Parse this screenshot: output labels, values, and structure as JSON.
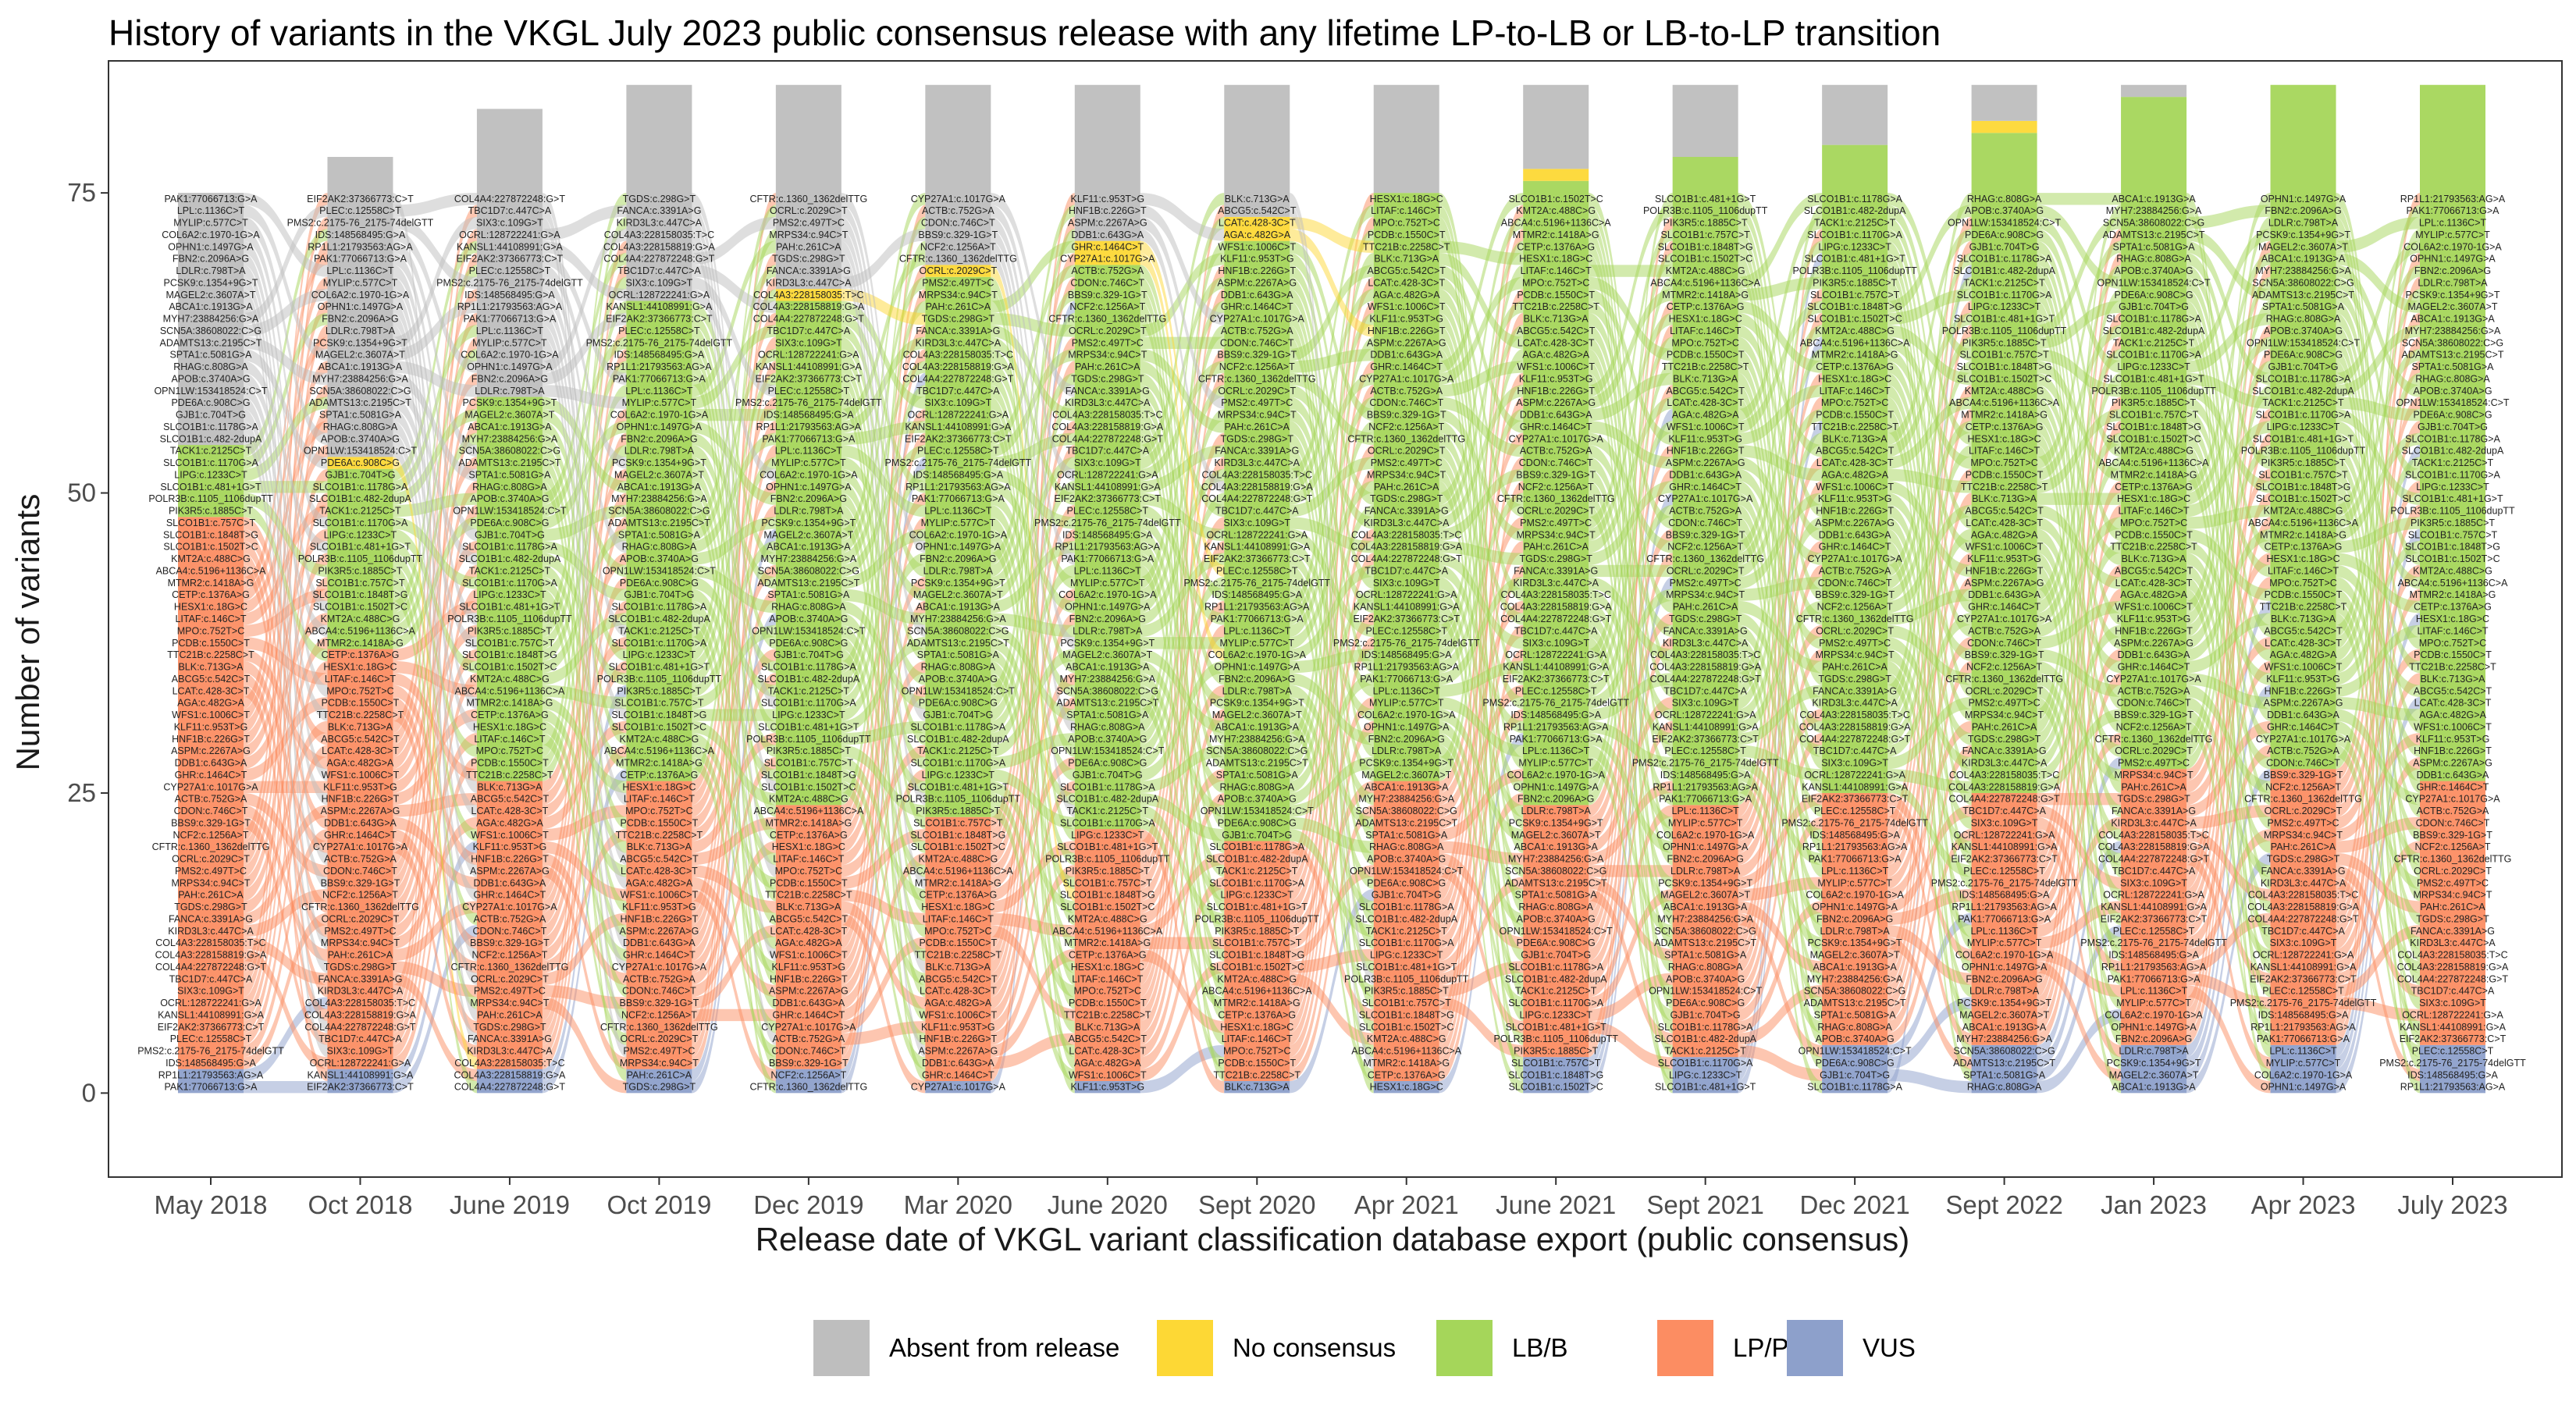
{
  "chart_data": {
    "type": "area",
    "subtype": "alluvial",
    "title": "History of variants in the VKGL July 2023 public consensus release with any lifetime LP-to-LB or LB-to-LP transition",
    "xlabel": "Release date of VKGL variant classification database export (public consensus)",
    "ylabel": "Number of variants",
    "ylim": [
      -7,
      86
    ],
    "yticks": [
      0,
      25,
      50,
      75
    ],
    "grid": false,
    "legend_position": "bottom",
    "colors": {
      "Absent from release": "#bebebe",
      "No consensus": "#fdd835",
      "LB/B": "#a5d65a",
      "LP/P": "#fc8d62",
      "VUS": "#8da0cb"
    },
    "categories": [
      "May 2018",
      "Oct 2018",
      "June 2019",
      "Oct 2019",
      "Dec 2019",
      "Mar 2020",
      "June 2020",
      "Sept 2020",
      "Apr 2021",
      "June 2021",
      "Sept 2021",
      "Dec 2021",
      "Sept 2022",
      "Jan 2023",
      "Apr 2023",
      "July 2023"
    ],
    "series": [
      {
        "name": "Absent from release",
        "values": [
          21,
          25,
          24,
          18,
          17,
          15,
          13,
          11,
          9,
          7,
          6,
          5,
          3,
          1,
          0,
          0
        ]
      },
      {
        "name": "No consensus",
        "values": [
          0,
          1,
          0,
          0,
          1,
          1,
          2,
          2,
          0,
          1,
          0,
          0,
          1,
          0,
          0,
          0
        ]
      },
      {
        "name": "LB/B",
        "values": [
          6,
          15,
          32,
          40,
          42,
          45,
          47,
          50,
          49,
          52,
          54,
          54,
          55,
          56,
          57,
          58
        ]
      },
      {
        "name": "LP/P",
        "values": [
          46,
          35,
          24,
          24,
          22,
          22,
          21,
          20,
          25,
          21,
          21,
          21,
          21,
          23,
          23,
          22
        ]
      },
      {
        "name": "VUS",
        "values": [
          2,
          2,
          2,
          2,
          2,
          1,
          1,
          1,
          1,
          3,
          3,
          4,
          4,
          4,
          4,
          4
        ]
      }
    ],
    "variant_labels": [
      "PAK1:77066713:G>A",
      "RP1L1:21793563:AG>A",
      "IDS:148568495:G>A",
      "PMS2:c.2175-76_2175-74delGTT",
      "PLEC:c.12558C>T",
      "EIF2AK2:37366773:C>T",
      "KANSL1:44108991:G>A",
      "OCRL:128722241:G>A",
      "SIX3:c.109G>T",
      "TBC1D7:c.447C>A",
      "COL4A4:227872248:G>T",
      "COL4A3:228158819:G>A",
      "COL4A3:228158035:T>C",
      "KIRD3L3:c.447C>A",
      "FANCA:c.3391A>G",
      "TGDS:c.298G>T",
      "PAH:c.261C>A",
      "MRPS34:c.94C>T",
      "PMS2:c.497T>C",
      "OCRL:c.2029C>T",
      "CFTR:c.1360_1362delTTG",
      "NCF2:c.1256A>T",
      "BBS9:c.329-1G>T",
      "CDON:c.746C>T",
      "ACTB:c.752G>A",
      "CYP27A1:c.1017G>A",
      "GHR:c.1464C>T",
      "DDB1:c.643G>A",
      "ASPM:c.2267A>G",
      "HNF1B:c.226G>T",
      "KLF11:c.953T>G",
      "WFS1:c.1006C>T",
      "AGA:c.482G>A",
      "LCAT:c.428-3C>T",
      "ABCG5:c.542C>T",
      "BLK:c.713G>A",
      "TTC21B:c.2258C>T",
      "PCDB:c.1550C>T",
      "MPO:c.752T>C",
      "LITAF:c.146C>T",
      "HESX1:c.18G>C",
      "CETP:c.1376A>G",
      "MTMR2:c.1418A>G",
      "ABCA4:c.5196+1136C>A",
      "KMT2A:c.488C>G",
      "SLCO1B1:c.1502T>C",
      "SLCO1B1:c.1848T>G",
      "SLCO1B1:c.757C>T",
      "PIK3R5:c.1885C>T",
      "POLR3B:c.1105_1106dupTT",
      "SLCO1B1:c.481+1G>T",
      "LIPG:c.1233C>T",
      "SLCO1B1:c.1170G>A",
      "TACK1:c.2125C>T",
      "SLCO1B1:c.482-2dupA",
      "SLCO1B1:c.1178G>A",
      "GJB1:c.704T>G",
      "PDE6A:c.908C>G",
      "OPN1LW:153418524:C>T",
      "APOB:c.3740A>G",
      "RHAG:c.808G>A",
      "SPTA1:c.5081G>A",
      "ADAMTS13:c.2195C>T",
      "SCN5A:38608022:C>G",
      "MYH7:23884256:G>A",
      "ABCA1:c.1913G>A",
      "MAGEL2:c.3607A>T",
      "PCSK9:c.1354+9G>T",
      "LDLR:c.798T>A",
      "FBN2:c.2096A>G",
      "OPHN1:c.1497G>A",
      "COL6A2:c.1970-1G>A",
      "MYLIP:c.577C>T",
      "LPL:c.1136C>T"
    ],
    "legend_entries": [
      "Absent from release",
      "No consensus",
      "LB/B",
      "LP/P",
      "VUS"
    ]
  }
}
